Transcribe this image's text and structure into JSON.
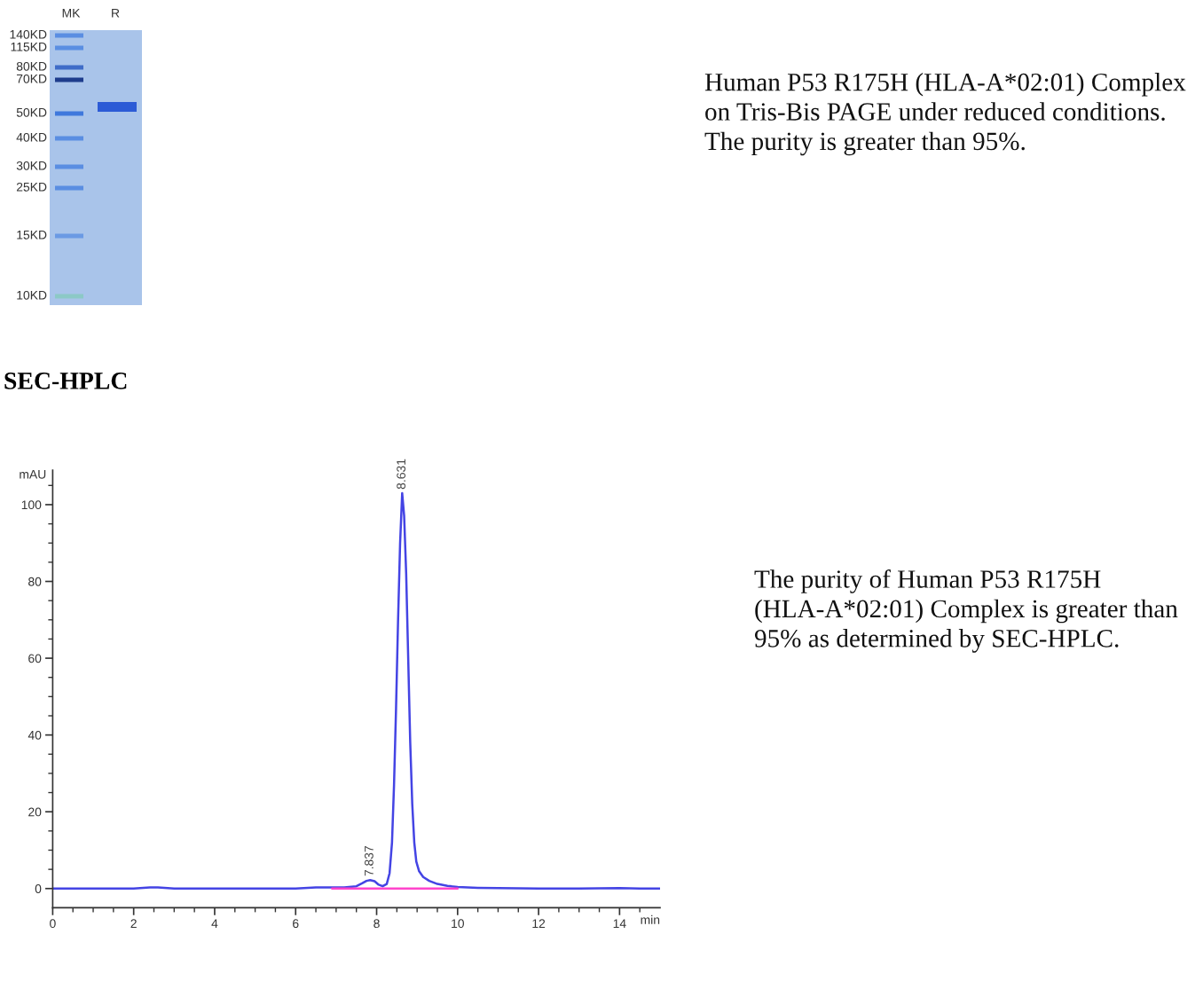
{
  "chart_data": [
    {
      "type": "other",
      "annotations": [
        "MK",
        "R",
        "140KD",
        "115KD",
        "80KD",
        "70KD",
        "50KD",
        "40KD",
        "30KD",
        "25KD",
        "15KD",
        "10KD"
      ]
    },
    {
      "type": "other",
      "annotations": [
        "Human P53 R175H (HLA-A*02:01) Complex on Tris-Bis PAGE under reduced conditions. The purity is greater than 95%."
      ]
    },
    {
      "type": "line",
      "title": "SEC-HPLC",
      "xlabel": "min",
      "ylabel": "mAU",
      "xlim": [
        0,
        15
      ],
      "ylim": [
        -5,
        109
      ],
      "xticks": [
        0,
        {
          "value": 0.5,
          "label": null
        },
        {
          "value": 1,
          "label": null
        },
        {
          "value": 1.5,
          "label": null
        },
        2,
        {
          "value": 2.5,
          "label": null
        },
        {
          "value": 3,
          "label": null
        },
        {
          "value": 3.5,
          "label": null
        },
        4,
        {
          "value": 4.5,
          "label": null
        },
        {
          "value": 5,
          "label": null
        },
        {
          "value": 5.5,
          "label": null
        },
        6,
        {
          "value": 6.5,
          "label": null
        },
        {
          "value": 7,
          "label": null
        },
        {
          "value": 7.5,
          "label": null
        },
        8,
        {
          "value": 8.5,
          "label": null
        },
        {
          "value": 9,
          "label": null
        },
        {
          "value": 9.5,
          "label": null
        },
        10,
        {
          "value": 10.5,
          "label": null
        },
        {
          "value": 11,
          "label": null
        },
        {
          "value": 11.5,
          "label": null
        },
        12,
        {
          "value": 12.5,
          "label": null
        },
        {
          "value": 13,
          "label": null
        },
        {
          "value": 13.5,
          "label": null
        },
        14,
        {
          "value": 14.5,
          "label": null
        }
      ],
      "yticks": [
        0,
        {
          "value": 5,
          "label": null
        },
        {
          "value": 10,
          "label": null
        },
        {
          "value": 15,
          "label": null
        },
        20,
        {
          "value": 25,
          "label": null
        },
        {
          "value": 30,
          "label": null
        },
        {
          "value": 35,
          "label": null
        },
        40,
        {
          "value": 45,
          "label": null
        },
        {
          "value": 50,
          "label": null
        },
        {
          "value": 55,
          "label": null
        },
        60,
        {
          "value": 65,
          "label": null
        },
        {
          "value": 70,
          "label": null
        },
        {
          "value": 75,
          "label": null
        },
        80,
        {
          "value": 85,
          "label": null
        },
        {
          "value": 90,
          "label": null
        },
        {
          "value": 95,
          "label": null
        },
        100,
        {
          "value": 105,
          "label": null
        }
      ],
      "x": [
        0,
        1,
        2,
        2.4,
        2.6,
        3,
        4,
        5,
        6,
        6.5,
        6.9,
        7.2,
        7.5,
        7.65,
        7.75,
        7.84,
        7.95,
        8.05,
        8.15,
        8.25,
        8.32,
        8.38,
        8.43,
        8.48,
        8.53,
        8.58,
        8.631,
        8.68,
        8.73,
        8.78,
        8.83,
        8.88,
        8.93,
        8.98,
        9.05,
        9.15,
        9.3,
        9.5,
        9.75,
        10,
        10.5,
        11,
        12,
        13,
        14,
        14.5,
        15
      ],
      "series": [
        {
          "color": "#4444e4",
          "values": [
            0,
            0,
            0,
            0.3,
            0.3,
            0,
            0,
            0,
            0,
            0.3,
            0.3,
            0.3,
            0.6,
            1.4,
            2.0,
            2.2,
            1.9,
            1.0,
            0.6,
            1.2,
            4,
            12,
            27,
            47,
            70,
            90,
            103,
            97,
            82,
            60,
            38,
            22,
            12,
            7,
            4.5,
            3,
            2,
            1.2,
            0.7,
            0.4,
            0.2,
            0.1,
            0,
            0,
            0.1,
            0,
            0
          ]
        },
        {
          "color": "#ff44cc",
          "x": [
            6.9,
            10
          ],
          "values": [
            0,
            0
          ]
        }
      ],
      "annotations": [
        {
          "text": "7.837",
          "x": 7.837,
          "y": 2.2
        },
        {
          "text": "8.631",
          "x": 8.631,
          "y": 103
        }
      ]
    },
    {
      "type": "other",
      "annotations": [
        "The purity of Human P53 R175H (HLA-A*02:01) Complex is greater than 95% as determined by SEC-HPLC."
      ]
    }
  ]
}
